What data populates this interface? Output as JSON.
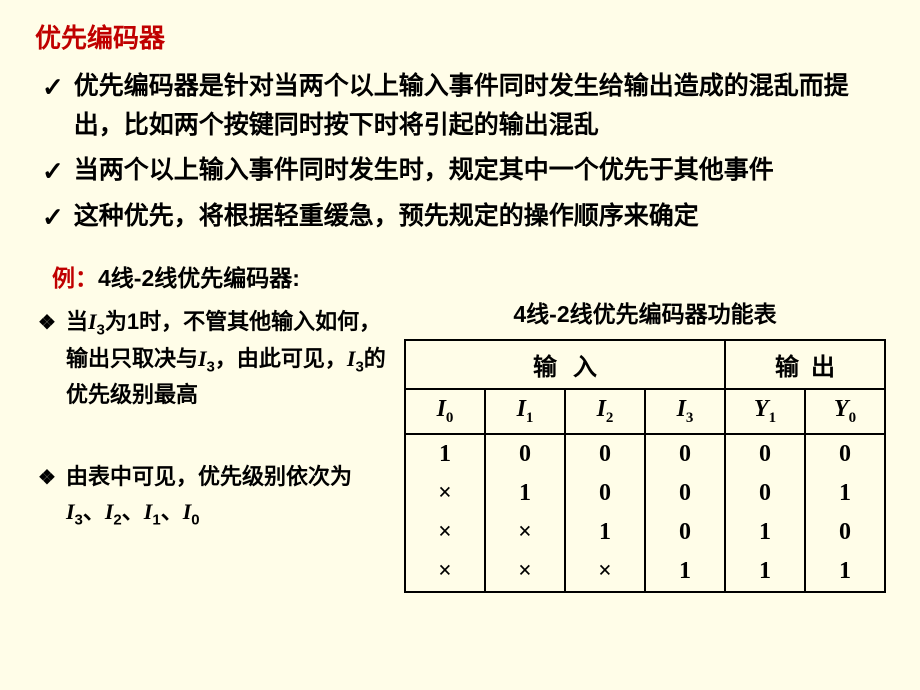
{
  "title": "优先编码器",
  "bullets_check": [
    "优先编码器是针对当两个以上输入事件同时发生给输出造成的混乱而提出，比如两个按键同时按下时将引起的输出混乱",
    "当两个以上输入事件同时发生时，规定其中一个优先于其他事件",
    "这种优先，将根据轻重缓急，预先规定的操作顺序来确定"
  ],
  "example_prefix": "例：",
  "example_text": "4线-2线优先编码器:",
  "diamond1_html": "当<span class='ital'>I</span><span class='sub'>3</span>为1时，不管其他输入如何，输出只取决与<span class='ital'>I</span><span class='sub'>3</span>，由此可见，<span class='ital'>I</span><span class='sub'>3</span>的优先级别最高",
  "diamond2_html": "由表中可见，优先级别依次为<span class='ital'>I</span><span class='sub'>3</span>、<span class='ital'>I</span><span class='sub'>2</span>、<span class='ital'>I</span><span class='sub'>1</span>、<span class='ital'>I</span><span class='sub'>0</span>",
  "table": {
    "caption": "4线-2线优先编码器功能表",
    "group_input": "输入",
    "group_output": "输出",
    "columns": [
      "I0",
      "I1",
      "I2",
      "I3",
      "Y1",
      "Y0"
    ],
    "rows": [
      [
        "1",
        "0",
        "0",
        "0",
        "0",
        "0"
      ],
      [
        "×",
        "1",
        "0",
        "0",
        "0",
        "1"
      ],
      [
        "×",
        "×",
        "1",
        "0",
        "1",
        "0"
      ],
      [
        "×",
        "×",
        "×",
        "1",
        "1",
        "1"
      ]
    ]
  },
  "colors": {
    "background": "#fffde8",
    "title": "#c00000",
    "text": "#000000",
    "border": "#000000"
  }
}
